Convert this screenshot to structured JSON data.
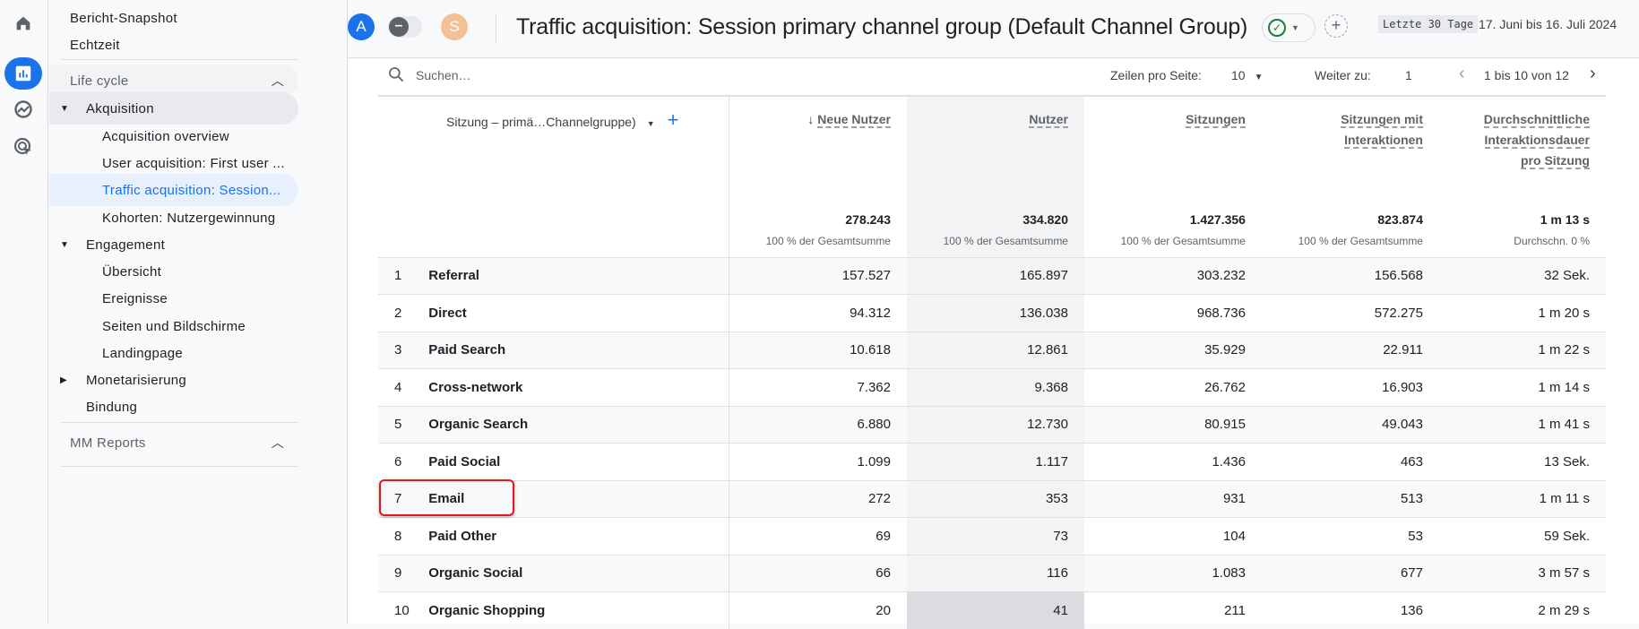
{
  "rail": {
    "icons": [
      "home-icon",
      "reports-icon",
      "explore-icon",
      "advertising-icon"
    ],
    "accent": "#1a73e8"
  },
  "nav": {
    "top_items": [
      "Bericht-Snapshot",
      "Echtzeit"
    ],
    "section1": "Life cycle",
    "akquisition": "Akquisition",
    "akquisition_items": [
      "Acquisition overview",
      "User acquisition: First user ...",
      "Traffic acquisition: Session...",
      "Kohorten: Nutzergewinnung"
    ],
    "engagement": "Engagement",
    "engagement_items": [
      "Übersicht",
      "Ereignisse",
      "Seiten und Bildschirme",
      "Landingpage"
    ],
    "monetarisierung": "Monetarisierung",
    "bindung": "Bindung",
    "section2": "MM Reports"
  },
  "header": {
    "avatar_a": "A",
    "avatar_s": "S",
    "title": "Traffic acquisition: Session primary channel group (Default Channel Group)",
    "date_chip": "Letzte 30 Tage",
    "date_range": "17. Juni bis 16. Juli 2024"
  },
  "toolbar": {
    "search_placeholder": "Suchen…",
    "rows_label": "Zeilen pro Seite:",
    "rows_value": "10",
    "goto_label": "Weiter zu:",
    "goto_value": "1",
    "page_info": "1 bis 10 von 12"
  },
  "table": {
    "dimension_header": "Sitzung – primä…Channelgruppe)",
    "columns": [
      {
        "label": "Neue Nutzer",
        "lines": [
          "Neue Nutzer"
        ],
        "sorted": "desc",
        "total": "278.243",
        "total_sub": "100 % der Gesamtsumme"
      },
      {
        "label": "Nutzer",
        "lines": [
          "Nutzer"
        ],
        "total": "334.820",
        "total_sub": "100 % der Gesamtsumme"
      },
      {
        "label": "Sitzungen",
        "lines": [
          "Sitzungen"
        ],
        "total": "1.427.356",
        "total_sub": "100 % der Gesamtsumme"
      },
      {
        "label": "Sitzungen mit Interaktionen",
        "lines": [
          "Sitzungen mit",
          "Interaktionen"
        ],
        "total": "823.874",
        "total_sub": "100 % der Gesamtsumme"
      },
      {
        "label": "Durchschnittliche Interaktionsdauer pro Sitzung",
        "lines": [
          "Durchschnittliche",
          "Interaktionsdauer",
          "pro Sitzung"
        ],
        "total": "1 m 13 s",
        "total_sub": "Durchschn. 0 %"
      }
    ],
    "rows": [
      [
        "1",
        "Referral",
        "157.527",
        "165.897",
        "303.232",
        "156.568",
        "32 Sek."
      ],
      [
        "2",
        "Direct",
        "94.312",
        "136.038",
        "968.736",
        "572.275",
        "1 m 20 s"
      ],
      [
        "3",
        "Paid Search",
        "10.618",
        "12.861",
        "35.929",
        "22.911",
        "1 m 22 s"
      ],
      [
        "4",
        "Cross-network",
        "7.362",
        "9.368",
        "26.762",
        "16.903",
        "1 m 14 s"
      ],
      [
        "5",
        "Organic Search",
        "6.880",
        "12.730",
        "80.915",
        "49.043",
        "1 m 41 s"
      ],
      [
        "6",
        "Paid Social",
        "1.099",
        "1.117",
        "1.436",
        "463",
        "13 Sek."
      ],
      [
        "7",
        "Email",
        "272",
        "353",
        "931",
        "513",
        "1 m 11 s"
      ],
      [
        "8",
        "Paid Other",
        "69",
        "73",
        "104",
        "53",
        "59 Sek."
      ],
      [
        "9",
        "Organic Social",
        "66",
        "116",
        "1.083",
        "677",
        "3 m 57 s"
      ],
      [
        "10",
        "Organic Shopping",
        "20",
        "41",
        "211",
        "136",
        "2 m 29 s"
      ]
    ],
    "highlighted_row": "7",
    "highlight_color": "#e8151b"
  }
}
